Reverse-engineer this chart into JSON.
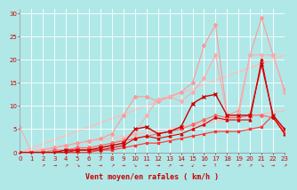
{
  "xlabel": "Vent moyen/en rafales ( km/h )",
  "xlim": [
    0,
    23
  ],
  "ylim": [
    0,
    31
  ],
  "yticks": [
    0,
    5,
    10,
    15,
    20,
    25,
    30
  ],
  "xticks": [
    0,
    1,
    2,
    3,
    4,
    5,
    6,
    7,
    8,
    9,
    10,
    11,
    12,
    13,
    14,
    15,
    16,
    17,
    18,
    19,
    20,
    21,
    22,
    23
  ],
  "background_color": "#b0e8e8",
  "grid_color": "#d0f0f0",
  "series": [
    {
      "comment": "light pink diagonal reference line upper",
      "x": [
        0,
        23
      ],
      "y": [
        0,
        21.0
      ],
      "color": "#ffbbbb",
      "marker": null,
      "markersize": 0,
      "linewidth": 1.0,
      "zorder": 1
    },
    {
      "comment": "light pink diagonal reference line lower",
      "x": [
        0,
        23
      ],
      "y": [
        0,
        9.0
      ],
      "color": "#ffbbbb",
      "marker": null,
      "markersize": 0,
      "linewidth": 1.0,
      "zorder": 1
    },
    {
      "comment": "light pink jagged line with diamond markers - highest peaks",
      "x": [
        0,
        1,
        2,
        3,
        4,
        5,
        6,
        7,
        8,
        9,
        10,
        11,
        12,
        13,
        14,
        15,
        16,
        17,
        18,
        19,
        20,
        21,
        22,
        23
      ],
      "y": [
        0,
        0,
        0.5,
        1,
        1.5,
        2,
        2.5,
        3,
        4,
        8,
        12,
        12,
        11,
        12,
        13,
        15,
        23,
        27.5,
        8,
        9,
        21,
        29,
        21,
        13.5
      ],
      "color": "#ff9999",
      "marker": "D",
      "markersize": 2,
      "linewidth": 0.8,
      "zorder": 2
    },
    {
      "comment": "medium pink line with diamond markers - starts at 5.5",
      "x": [
        0,
        1,
        2,
        3,
        4,
        5,
        6,
        7,
        8,
        9,
        10,
        11,
        12,
        13,
        14,
        15,
        16,
        17,
        18,
        19,
        20,
        21,
        22,
        23
      ],
      "y": [
        5.5,
        0,
        0,
        0,
        0.5,
        0.5,
        1,
        1,
        2,
        3,
        4,
        8,
        11.5,
        12,
        11,
        13,
        16,
        21,
        8,
        8,
        21,
        21,
        21,
        13
      ],
      "color": "#ffaaaa",
      "marker": "D",
      "markersize": 2,
      "linewidth": 0.8,
      "zorder": 2
    },
    {
      "comment": "medium red line ascending steadily",
      "x": [
        0,
        1,
        2,
        3,
        4,
        5,
        6,
        7,
        8,
        9,
        10,
        11,
        12,
        13,
        14,
        15,
        16,
        17,
        18,
        19,
        20,
        21,
        22,
        23
      ],
      "y": [
        0,
        0,
        0,
        0.5,
        0.5,
        1,
        1,
        1.5,
        2,
        2.5,
        3,
        3.5,
        4,
        4.5,
        5,
        6,
        7,
        8,
        7.5,
        7.5,
        8,
        8,
        7.5,
        4.5
      ],
      "color": "#ff6666",
      "marker": "D",
      "markersize": 2,
      "linewidth": 0.8,
      "zorder": 3
    },
    {
      "comment": "dark red line with cross markers - peaks at 12.5",
      "x": [
        0,
        1,
        2,
        3,
        4,
        5,
        6,
        7,
        8,
        9,
        10,
        11,
        12,
        13,
        14,
        15,
        16,
        17,
        18,
        19,
        20,
        21,
        22,
        23
      ],
      "y": [
        0,
        0,
        0,
        0,
        0.5,
        0.5,
        0.5,
        1,
        1.5,
        2,
        5,
        5.5,
        4,
        4.5,
        5.5,
        10.5,
        12,
        12.5,
        8,
        8,
        8,
        19,
        8,
        5
      ],
      "color": "#cc0000",
      "marker": "x",
      "markersize": 3,
      "linewidth": 1.0,
      "zorder": 4
    },
    {
      "comment": "dark red line with triangle up markers",
      "x": [
        0,
        1,
        2,
        3,
        4,
        5,
        6,
        7,
        8,
        9,
        10,
        11,
        12,
        13,
        14,
        15,
        16,
        17,
        18,
        19,
        20,
        21,
        22,
        23
      ],
      "y": [
        0,
        0,
        0,
        0,
        0,
        0.5,
        0.5,
        0.5,
        1,
        1.5,
        3,
        3.5,
        3,
        3.5,
        4,
        5,
        6,
        7.5,
        7,
        7,
        7,
        20,
        7.5,
        4
      ],
      "color": "#dd0000",
      "marker": "^",
      "markersize": 2,
      "linewidth": 0.8,
      "zorder": 4
    },
    {
      "comment": "red line mostly flat low",
      "x": [
        0,
        1,
        2,
        3,
        4,
        5,
        6,
        7,
        8,
        9,
        10,
        11,
        12,
        13,
        14,
        15,
        16,
        17,
        18,
        19,
        20,
        21,
        22,
        23
      ],
      "y": [
        0,
        0,
        0,
        0,
        0,
        0,
        0,
        0.5,
        0.5,
        1,
        1.5,
        2,
        2,
        2.5,
        3,
        3.5,
        4,
        4.5,
        4.5,
        4.5,
        5,
        5.5,
        8,
        4
      ],
      "color": "#ff3333",
      "marker": "s",
      "markersize": 1.5,
      "linewidth": 0.8,
      "zorder": 3
    }
  ],
  "wind_arrows": [
    {
      "x": 2,
      "ch": "↗"
    },
    {
      "x": 3,
      "ch": "→"
    },
    {
      "x": 4,
      "ch": "↗"
    },
    {
      "x": 5,
      "ch": "↘"
    },
    {
      "x": 6,
      "ch": "→"
    },
    {
      "x": 7,
      "ch": "→"
    },
    {
      "x": 8,
      "ch": "↗"
    },
    {
      "x": 9,
      "ch": "→"
    },
    {
      "x": 10,
      "ch": "↘"
    },
    {
      "x": 11,
      "ch": "→"
    },
    {
      "x": 12,
      "ch": "→"
    },
    {
      "x": 13,
      "ch": "↗"
    },
    {
      "x": 14,
      "ch": "→"
    },
    {
      "x": 15,
      "ch": "↙"
    },
    {
      "x": 16,
      "ch": "←"
    },
    {
      "x": 17,
      "ch": "↑"
    },
    {
      "x": 18,
      "ch": "→"
    },
    {
      "x": 19,
      "ch": "↗"
    },
    {
      "x": 20,
      "ch": "↗"
    },
    {
      "x": 21,
      "ch": "↘"
    },
    {
      "x": 22,
      "ch": "→"
    },
    {
      "x": 23,
      "ch": "↗"
    }
  ],
  "tick_fontsize": 5,
  "label_fontsize": 6,
  "xlabel_color": "#cc0000",
  "tick_color": "#cc0000"
}
